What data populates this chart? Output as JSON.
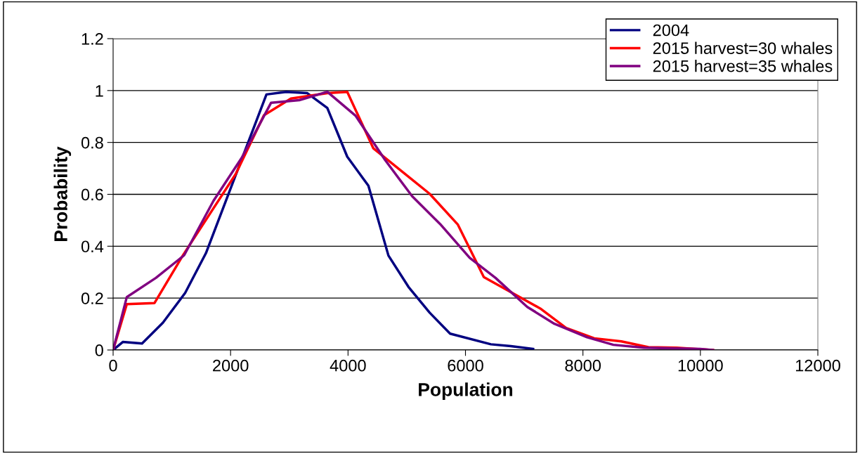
{
  "chart_data": {
    "type": "line",
    "xlabel": "Population",
    "ylabel": "Probability",
    "xlim": [
      0,
      12000
    ],
    "xticks": [
      0,
      2000,
      4000,
      6000,
      8000,
      10000,
      12000
    ],
    "ylim": [
      0,
      1.2
    ],
    "yticks": [
      0,
      0.2,
      0.4,
      0.6,
      0.8,
      1,
      1.2
    ],
    "grid": "y",
    "legend": "top right",
    "marker": "none",
    "line_style": "solid",
    "series": [
      {
        "name": "2004",
        "color": "#000080",
        "x": [
          0,
          165,
          493,
          847,
          1227,
          1580,
          2611,
          2947,
          3307,
          3647,
          3987,
          4347,
          4688,
          5030,
          5390,
          5738,
          6432,
          6772,
          7152
        ],
        "values": [
          0,
          0.031,
          0.025,
          0.105,
          0.22,
          0.373,
          0.985,
          0.995,
          0.99,
          0.933,
          0.745,
          0.633,
          0.364,
          0.243,
          0.144,
          0.063,
          0.022,
          0.015,
          0.004
        ]
      },
      {
        "name": "2015 harvest=30 whales",
        "color": "#ff0000",
        "x": [
          0,
          233,
          705,
          1186,
          2087,
          2568,
          3027,
          3647,
          3987,
          4432,
          5390,
          5871,
          6312,
          7273,
          7713,
          8193,
          8654,
          9115,
          9595,
          10215
        ],
        "values": [
          0,
          0.177,
          0.181,
          0.364,
          0.678,
          0.905,
          0.969,
          0.99,
          0.995,
          0.777,
          0.602,
          0.483,
          0.281,
          0.16,
          0.085,
          0.045,
          0.033,
          0.011,
          0.009,
          0
        ]
      },
      {
        "name": "2015 harvest=35 whales",
        "color": "#800080",
        "x": [
          0,
          233,
          729,
          1209,
          1709,
          2190,
          2690,
          3170,
          3647,
          4128,
          4632,
          5090,
          5570,
          6072,
          6511,
          7052,
          7513,
          8070,
          8518,
          9036,
          9995,
          10215
        ],
        "values": [
          0,
          0.204,
          0.278,
          0.365,
          0.575,
          0.741,
          0.953,
          0.963,
          0.995,
          0.903,
          0.732,
          0.593,
          0.485,
          0.355,
          0.278,
          0.166,
          0.101,
          0.049,
          0.02,
          0.009,
          0.004,
          0
        ]
      }
    ]
  }
}
